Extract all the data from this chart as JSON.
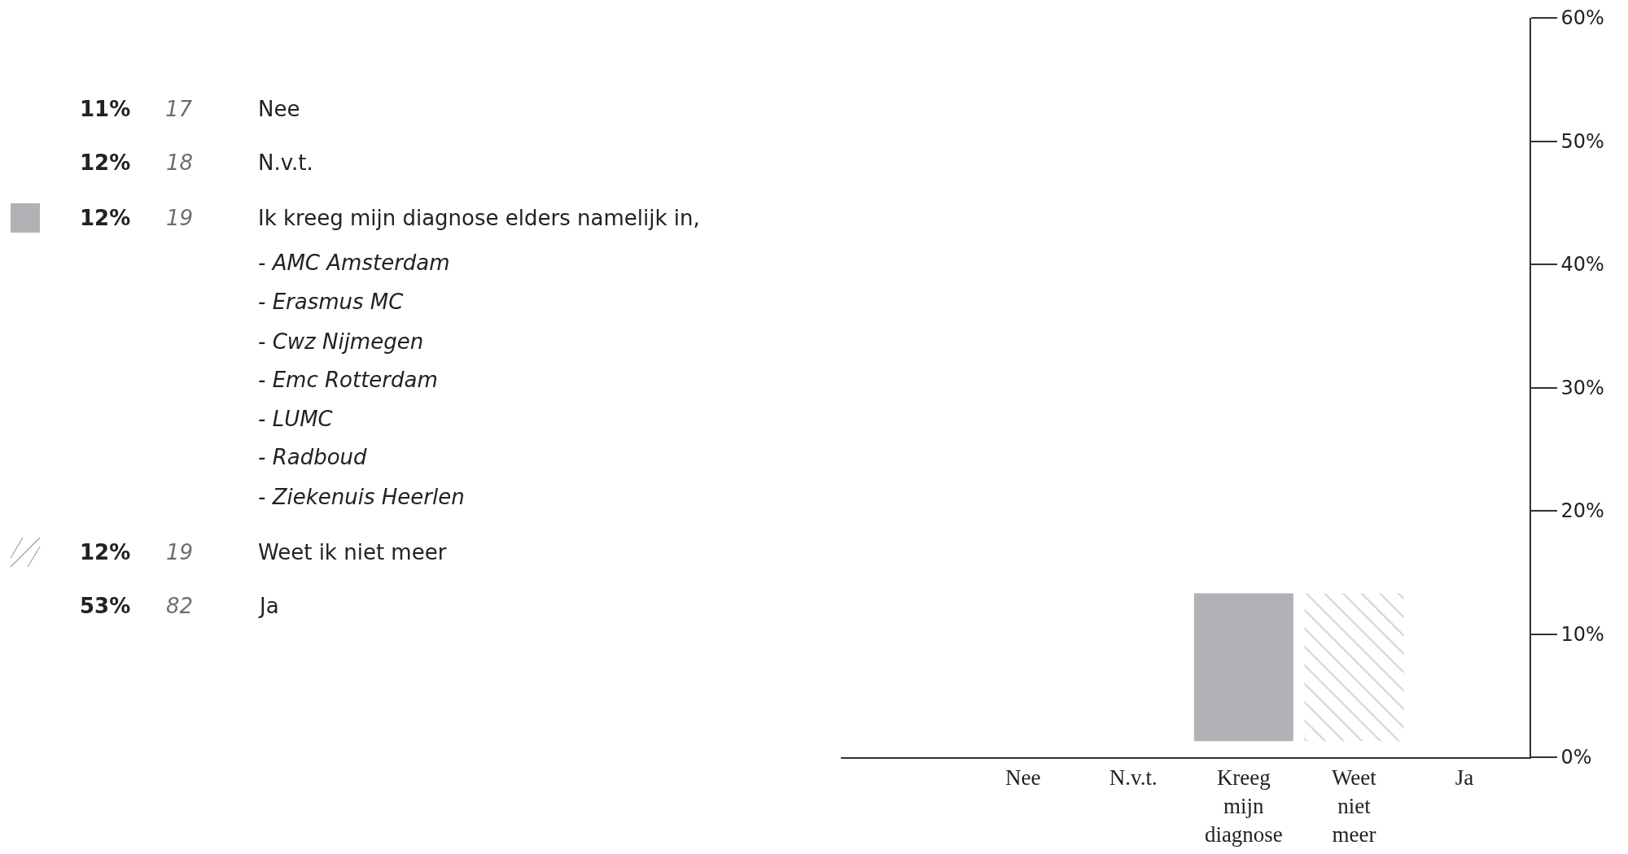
{
  "chart_data": {
    "type": "bar",
    "categories": [
      "Nee",
      "N.v.t.",
      "Kreeg mijn diagnose",
      "Weet niet meer",
      "Ja"
    ],
    "series": [
      {
        "color": "#b1b2b5",
        "values": [
          null,
          null,
          12,
          null,
          null
        ],
        "base": [
          null,
          null,
          1.3,
          null,
          null
        ]
      },
      {
        "color": "#a3a3a3",
        "values": [
          null,
          null,
          null,
          12,
          null
        ],
        "base": [
          null,
          null,
          null,
          1.3,
          null
        ]
      }
    ],
    "ylim": [
      0,
      60
    ],
    "yticks": [
      {
        "value": 0,
        "label": "0%"
      },
      {
        "value": 10,
        "label": "10%"
      },
      {
        "value": 20,
        "label": "20%"
      },
      {
        "value": 30,
        "label": "30%"
      },
      {
        "value": 40,
        "label": "40%"
      },
      {
        "value": 50,
        "label": "50%"
      },
      {
        "value": 60,
        "label": "60%"
      }
    ],
    "annotations": [
      "11%",
      "17",
      "Nee",
      "12%",
      "18",
      "N.v.t.",
      "12%",
      "19",
      "Ik kreeg mijn diagnose elders namelijk in,",
      "- AMC Amsterdam",
      "- Erasmus MC",
      "- Cwz Nijmegen",
      "- Emc Rotterdam",
      "- LUMC",
      "- Radboud",
      "- Ziekenuis Heerlen",
      "12%",
      "19",
      "Weet ik niet meer",
      "53%",
      "82",
      "Ja"
    ]
  }
}
